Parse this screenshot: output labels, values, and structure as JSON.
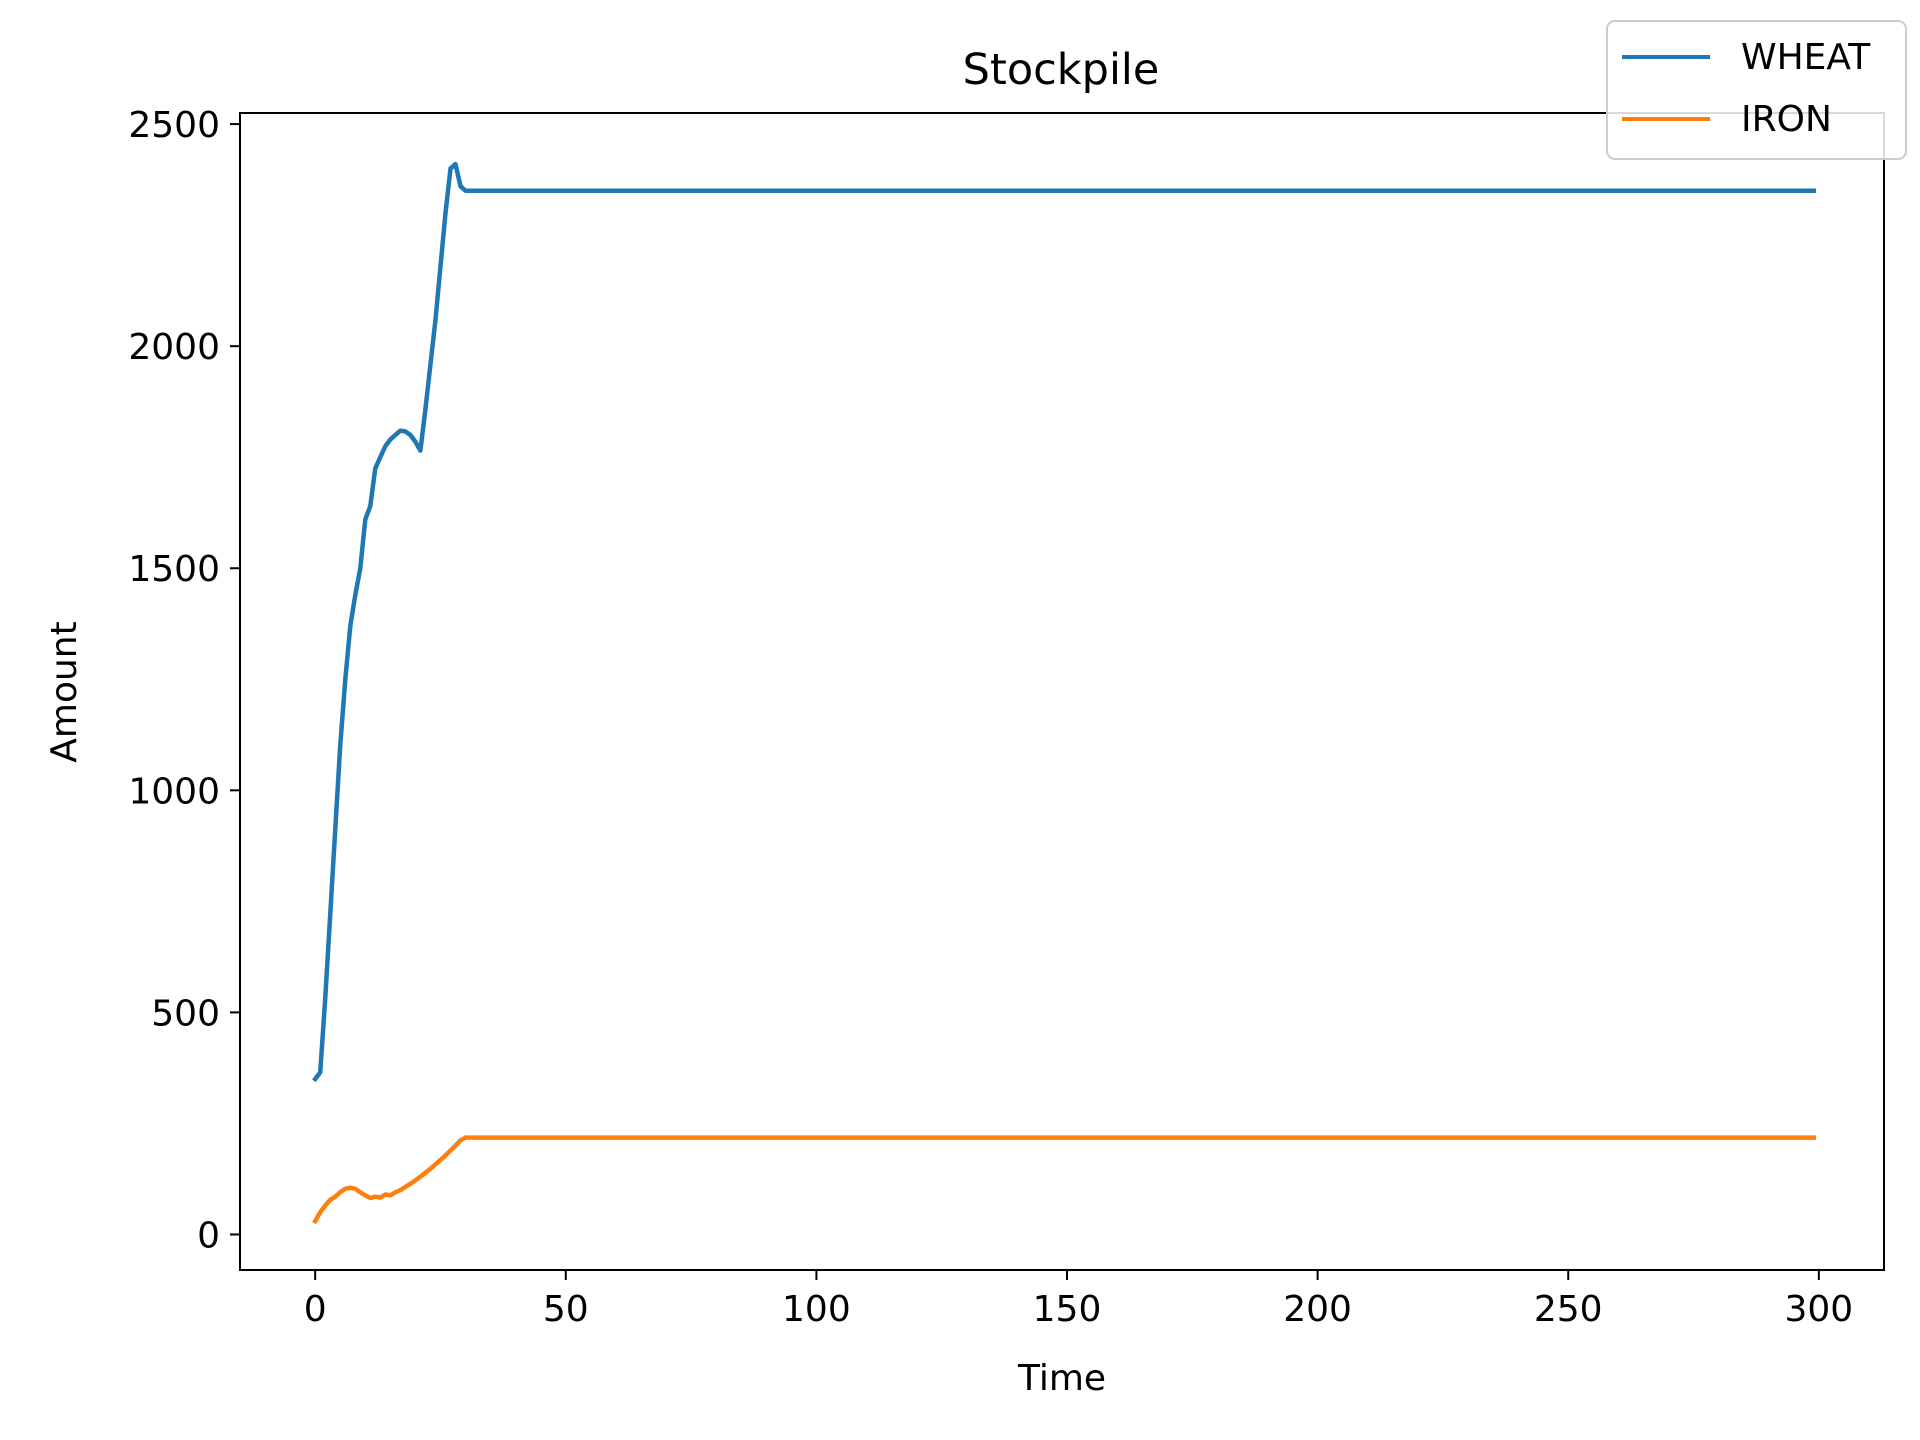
{
  "chart_data": {
    "type": "line",
    "title": "Stockpile",
    "xlabel": "Time",
    "ylabel": "Amount",
    "xlim": [
      -15,
      313
    ],
    "ylim": [
      -80,
      2525
    ],
    "xticks": [
      0,
      50,
      100,
      150,
      200,
      250,
      300
    ],
    "yticks": [
      0,
      500,
      1000,
      1500,
      2000,
      2500
    ],
    "grid": false,
    "legend_position": "top-right",
    "series": [
      {
        "name": "WHEAT",
        "color": "#1f77b4",
        "x": [
          0,
          1,
          2,
          3,
          4,
          5,
          6,
          7,
          8,
          9,
          10,
          11,
          12,
          13,
          14,
          15,
          16,
          17,
          18,
          19,
          20,
          21,
          22,
          23,
          24,
          25,
          26,
          27,
          28,
          29,
          30,
          31,
          32,
          33,
          299
        ],
        "y": [
          350,
          365,
          530,
          720,
          910,
          1100,
          1250,
          1370,
          1440,
          1500,
          1610,
          1640,
          1725,
          1750,
          1775,
          1790,
          1800,
          1810,
          1808,
          1800,
          1785,
          1765,
          1860,
          1960,
          2060,
          2180,
          2300,
          2400,
          2410,
          2360,
          2350,
          2350,
          2350,
          2350,
          2350
        ]
      },
      {
        "name": "IRON",
        "color": "#ff7f0e",
        "x": [
          0,
          1,
          2,
          3,
          4,
          5,
          6,
          7,
          8,
          9,
          10,
          11,
          12,
          13,
          14,
          15,
          16,
          17,
          18,
          19,
          20,
          21,
          22,
          23,
          24,
          25,
          26,
          27,
          28,
          29,
          30,
          31,
          32,
          33,
          299
        ],
        "y": [
          30,
          50,
          65,
          78,
          85,
          95,
          103,
          105,
          103,
          95,
          88,
          82,
          85,
          83,
          90,
          88,
          95,
          100,
          107,
          114,
          122,
          130,
          139,
          148,
          158,
          168,
          178,
          189,
          200,
          212,
          218,
          218,
          218,
          218,
          218
        ]
      }
    ]
  }
}
